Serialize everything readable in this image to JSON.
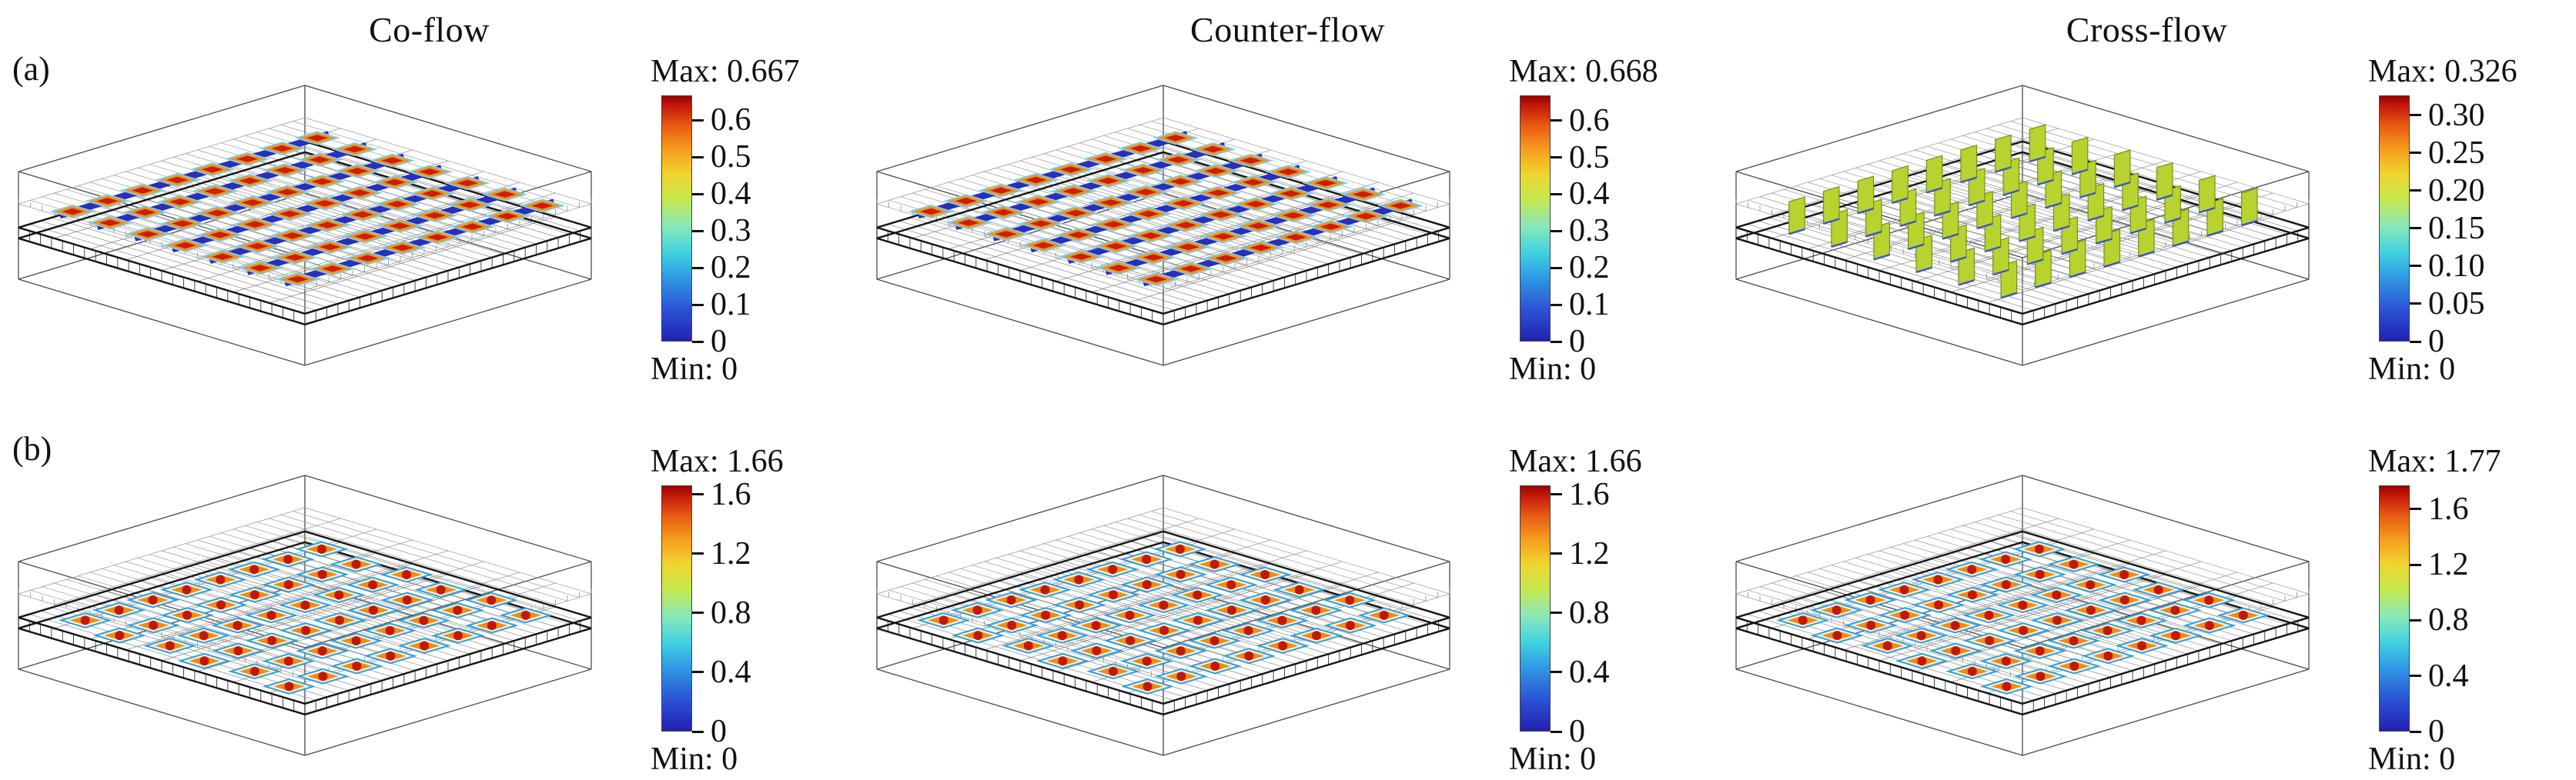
{
  "figure": {
    "column_titles": [
      "Co-flow",
      "Counter-flow",
      "Cross-flow"
    ],
    "row_labels": [
      "(a)",
      "(b)"
    ]
  },
  "chart_data": [
    {
      "id": "a-co-flow",
      "type": "heatmap",
      "row": "(a)",
      "flow": "Co-flow",
      "scene": "diagonal-channels",
      "colormap": "jet",
      "min": 0,
      "max": 0.667,
      "range_max": 0.667,
      "max_label": "Max: 0.667",
      "min_label": "Min: 0",
      "tick_values": [
        0.6,
        0.5,
        0.4,
        0.3,
        0.2,
        0.1,
        0
      ],
      "tick_labels": [
        "0.6",
        "0.5",
        "0.4",
        "0.3",
        "0.2",
        "0.1",
        "0"
      ]
    },
    {
      "id": "a-counter-flow",
      "type": "heatmap",
      "row": "(a)",
      "flow": "Counter-flow",
      "scene": "diagonal-channels",
      "colormap": "jet",
      "min": 0,
      "max": 0.668,
      "range_max": 0.668,
      "max_label": "Max: 0.668",
      "min_label": "Min: 0",
      "tick_values": [
        0.6,
        0.5,
        0.4,
        0.3,
        0.2,
        0.1,
        0
      ],
      "tick_labels": [
        "0.6",
        "0.5",
        "0.4",
        "0.3",
        "0.2",
        "0.1",
        "0"
      ]
    },
    {
      "id": "a-cross-flow",
      "type": "heatmap",
      "row": "(a)",
      "flow": "Cross-flow",
      "scene": "vertical-slabs",
      "colormap": "jet",
      "min": 0,
      "max": 0.326,
      "range_max": 0.326,
      "max_label": "Max: 0.326",
      "min_label": "Min: 0",
      "tick_values": [
        0.3,
        0.25,
        0.2,
        0.15,
        0.1,
        0.05,
        0
      ],
      "tick_labels": [
        "0.30",
        "0.25",
        "0.20",
        "0.15",
        "0.10",
        "0.05",
        "0"
      ]
    },
    {
      "id": "b-co-flow",
      "type": "heatmap",
      "row": "(b)",
      "flow": "Co-flow",
      "scene": "flat-cells",
      "colormap": "jet",
      "min": 0,
      "max": 1.66,
      "range_max": 1.66,
      "max_label": "Max: 1.66",
      "min_label": "Min: 0",
      "tick_values": [
        1.6,
        1.2,
        0.8,
        0.4,
        0
      ],
      "tick_labels": [
        "1.6",
        "1.2",
        "0.8",
        "0.4",
        "0"
      ]
    },
    {
      "id": "b-counter-flow",
      "type": "heatmap",
      "row": "(b)",
      "flow": "Counter-flow",
      "scene": "flat-cells",
      "colormap": "jet",
      "min": 0,
      "max": 1.66,
      "range_max": 1.66,
      "max_label": "Max: 1.66",
      "min_label": "Min: 0",
      "tick_values": [
        1.6,
        1.2,
        0.8,
        0.4,
        0
      ],
      "tick_labels": [
        "1.6",
        "1.2",
        "0.8",
        "0.4",
        "0"
      ]
    },
    {
      "id": "b-cross-flow",
      "type": "heatmap",
      "row": "(b)",
      "flow": "Cross-flow",
      "scene": "flat-cells",
      "colormap": "jet",
      "min": 0,
      "max": 1.77,
      "range_max": 1.77,
      "max_label": "Max: 1.77",
      "min_label": "Min: 0",
      "tick_values": [
        1.6,
        1.2,
        0.8,
        0.4,
        0
      ],
      "tick_labels": [
        "1.6",
        "1.2",
        "0.8",
        "0.4",
        "0"
      ]
    }
  ]
}
